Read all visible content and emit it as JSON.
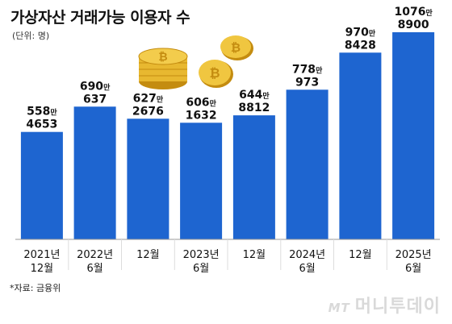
{
  "title": "가상자산 거래가능 이용자 수",
  "unit": "(단위: 명)",
  "source": "*자료: 금융위",
  "watermark": {
    "logo": "MT",
    "text": "머니투데이"
  },
  "colors": {
    "bar": "#1e65d0",
    "axis": "#999999",
    "coin": "#e8b830",
    "coin_edge": "#c48c10"
  },
  "decor": {
    "coins": "bitcoin-coins-icon"
  },
  "chart_data": {
    "type": "bar",
    "title": "가상자산 거래가능 이용자 수",
    "xlabel": "",
    "ylabel": "",
    "unit": "명",
    "categories": [
      "2021년 12월",
      "2022년 6월",
      "12월",
      "2023년 6월",
      "12월",
      "2024년 6월",
      "12월",
      "2025년 6월"
    ],
    "tick_lines": [
      [
        "2021년",
        "12월"
      ],
      [
        "2022년",
        "6월"
      ],
      [
        "12월"
      ],
      [
        "2023년",
        "6월"
      ],
      [
        "12월"
      ],
      [
        "2024년",
        "6월"
      ],
      [
        "12월"
      ],
      [
        "2025년",
        "6월"
      ]
    ],
    "values": [
      5584653,
      6900637,
      6272676,
      6061632,
      6448812,
      7780973,
      9708428,
      10768900
    ],
    "label_man": [
      "558",
      "690",
      "627",
      "606",
      "644",
      "778",
      "970",
      "1076"
    ],
    "label_rest": [
      "4653",
      "637",
      "2676",
      "1632",
      "8812",
      "973",
      "8428",
      "8900"
    ],
    "man_suffix": "만",
    "grid": false,
    "legend": "none"
  }
}
